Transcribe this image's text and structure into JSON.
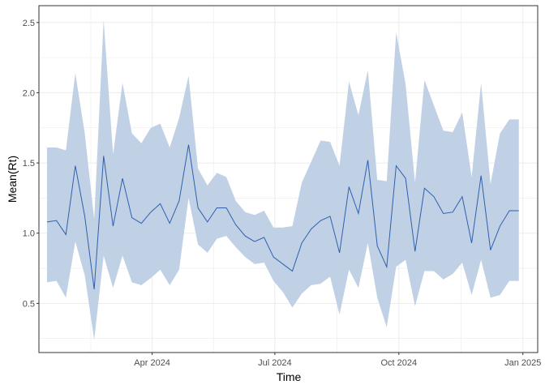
{
  "chart_data": {
    "type": "line",
    "xlabel": "Time",
    "ylabel": "Mean(Rt)",
    "ylim": [
      0.15,
      2.62
    ],
    "xlim": [
      "2024-01-08",
      "2025-01-12"
    ],
    "y_ticks": [
      0.5,
      1.0,
      1.5,
      2.0,
      2.5
    ],
    "y_tick_labels": [
      "0.5",
      "1.0",
      "1.5",
      "2.0",
      "2.5"
    ],
    "x_ticks": [
      "2024-04-01",
      "2024-07-01",
      "2024-10-01",
      "2025-01-01"
    ],
    "x_tick_labels": [
      "Apr 2024",
      "Jul 2024",
      "Oct 2024",
      "Jan 2025"
    ],
    "grid": true,
    "colors": {
      "line": "#2f5fad",
      "band": "#c0d1e5",
      "grid": "#ebebeb",
      "frame": "#333333"
    },
    "x": [
      "2024-01-14",
      "2024-01-21",
      "2024-01-28",
      "2024-02-04",
      "2024-02-11",
      "2024-02-18",
      "2024-02-25",
      "2024-03-03",
      "2024-03-10",
      "2024-03-17",
      "2024-03-24",
      "2024-03-31",
      "2024-04-07",
      "2024-04-14",
      "2024-04-21",
      "2024-04-28",
      "2024-05-05",
      "2024-05-12",
      "2024-05-19",
      "2024-05-26",
      "2024-06-02",
      "2024-06-09",
      "2024-06-16",
      "2024-06-23",
      "2024-06-30",
      "2024-07-07",
      "2024-07-14",
      "2024-07-21",
      "2024-07-28",
      "2024-08-04",
      "2024-08-11",
      "2024-08-18",
      "2024-08-25",
      "2024-09-01",
      "2024-09-08",
      "2024-09-15",
      "2024-09-22",
      "2024-09-29",
      "2024-10-06",
      "2024-10-13",
      "2024-10-20",
      "2024-10-27",
      "2024-11-03",
      "2024-11-10",
      "2024-11-17",
      "2024-11-24",
      "2024-12-01",
      "2024-12-08",
      "2024-12-15",
      "2024-12-22",
      "2024-12-29"
    ],
    "series": [
      {
        "type": "line",
        "values": [
          1.08,
          1.09,
          0.99,
          1.48,
          1.12,
          0.6,
          1.55,
          1.05,
          1.39,
          1.11,
          1.07,
          1.15,
          1.21,
          1.07,
          1.23,
          1.63,
          1.18,
          1.08,
          1.18,
          1.18,
          1.06,
          0.98,
          0.94,
          0.97,
          0.83,
          0.78,
          0.73,
          0.93,
          1.03,
          1.09,
          1.12,
          0.86,
          1.33,
          1.14,
          1.52,
          0.91,
          0.76,
          1.48,
          1.39,
          0.87,
          1.32,
          1.26,
          1.14,
          1.15,
          1.26,
          0.93,
          1.41,
          0.88,
          1.05,
          1.16,
          1.16
        ]
      },
      {
        "type": "band",
        "lower": [
          0.65,
          0.66,
          0.54,
          0.94,
          0.7,
          0.24,
          0.84,
          0.61,
          0.84,
          0.65,
          0.63,
          0.68,
          0.74,
          0.63,
          0.74,
          1.25,
          0.92,
          0.86,
          0.96,
          0.98,
          0.9,
          0.83,
          0.78,
          0.79,
          0.66,
          0.58,
          0.47,
          0.57,
          0.63,
          0.64,
          0.69,
          0.42,
          0.74,
          0.61,
          0.93,
          0.54,
          0.33,
          0.76,
          0.81,
          0.48,
          0.73,
          0.73,
          0.67,
          0.71,
          0.79,
          0.56,
          0.81,
          0.54,
          0.56,
          0.66,
          0.66
        ],
        "upper": [
          1.61,
          1.61,
          1.59,
          2.14,
          1.71,
          1.1,
          2.52,
          1.56,
          2.07,
          1.71,
          1.64,
          1.75,
          1.78,
          1.61,
          1.82,
          2.12,
          1.46,
          1.34,
          1.43,
          1.4,
          1.23,
          1.15,
          1.13,
          1.16,
          1.04,
          1.04,
          1.05,
          1.36,
          1.51,
          1.66,
          1.65,
          1.48,
          2.08,
          1.84,
          2.16,
          1.38,
          1.37,
          2.43,
          2.06,
          1.36,
          2.09,
          1.91,
          1.73,
          1.72,
          1.86,
          1.4,
          2.07,
          1.35,
          1.71,
          1.81,
          1.81
        ]
      }
    ]
  }
}
